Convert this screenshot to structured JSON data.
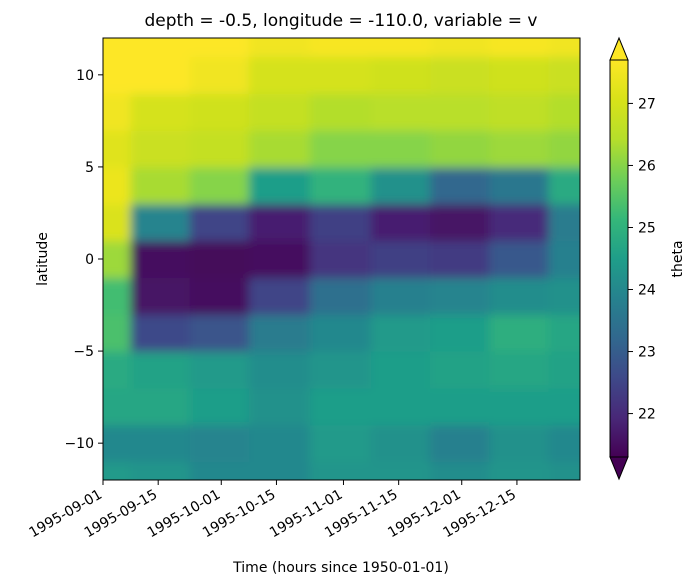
{
  "chart_data": {
    "type": "heatmap",
    "title": "depth = -0.5, longitude = -110.0, variable = v",
    "xlabel": "Time (hours since 1950-01-01)",
    "ylabel": "latitude",
    "xlim": [
      "1995-09-01",
      "1995-12-31"
    ],
    "ylim": [
      -12,
      12
    ],
    "x_ticks": [
      "1995-09-01",
      "1995-09-15",
      "1995-10-01",
      "1995-10-15",
      "1995-11-01",
      "1995-11-15",
      "1995-12-01",
      "1995-12-15"
    ],
    "y_ticks": [
      -10,
      -5,
      0,
      5,
      10
    ],
    "y_tick_labels": [
      "−10",
      "−5",
      "0",
      "5",
      "10"
    ],
    "colorbar": {
      "label": "theta",
      "vmin": 21.3,
      "vmax": 27.7,
      "ticks": [
        22,
        23,
        24,
        25,
        26,
        27
      ],
      "extend": "both",
      "colormap": "viridis"
    },
    "grid": false,
    "latitudes": [
      -12,
      -10,
      -8,
      -6,
      -4,
      -2,
      0,
      2,
      4,
      6,
      8,
      10,
      12
    ],
    "time_samples": [
      "1995-09-01",
      "1995-09-15",
      "1995-10-01",
      "1995-10-15",
      "1995-11-01",
      "1995-11-15",
      "1995-12-01",
      "1995-12-15",
      "1995-12-31"
    ],
    "values": [
      [
        24.4,
        24.0,
        24.7,
        24.8,
        25.4,
        25.3,
        26.2,
        27.1,
        27.4,
        27.2,
        27.5,
        27.7,
        27.7
      ],
      [
        24.3,
        24.0,
        24.7,
        24.6,
        22.6,
        21.6,
        21.5,
        23.9,
        26.3,
        26.8,
        27.0,
        27.7,
        27.7
      ],
      [
        24.0,
        23.9,
        24.5,
        24.4,
        22.8,
        21.5,
        21.4,
        22.5,
        26.0,
        26.7,
        26.9,
        27.5,
        27.7
      ],
      [
        24.0,
        24.0,
        24.2,
        24.1,
        23.7,
        22.5,
        21.5,
        21.8,
        24.5,
        26.3,
        26.7,
        27.0,
        27.5
      ],
      [
        24.3,
        24.4,
        24.5,
        24.3,
        24.0,
        23.4,
        22.2,
        22.4,
        25.0,
        26.0,
        26.4,
        27.0,
        27.6
      ],
      [
        24.3,
        24.2,
        24.5,
        24.5,
        24.4,
        23.8,
        22.4,
        21.8,
        24.2,
        26.0,
        26.5,
        26.9,
        27.6
      ],
      [
        24.1,
        23.8,
        24.5,
        24.6,
        24.5,
        23.9,
        22.3,
        21.6,
        23.2,
        26.1,
        26.5,
        26.8,
        27.5
      ],
      [
        24.3,
        24.2,
        24.5,
        24.7,
        24.9,
        24.1,
        22.9,
        22.0,
        23.6,
        26.2,
        26.6,
        26.9,
        27.6
      ],
      [
        24.2,
        24.0,
        24.5,
        24.6,
        24.7,
        24.2,
        23.8,
        23.7,
        24.8,
        26.1,
        26.4,
        26.8,
        27.5
      ]
    ]
  }
}
